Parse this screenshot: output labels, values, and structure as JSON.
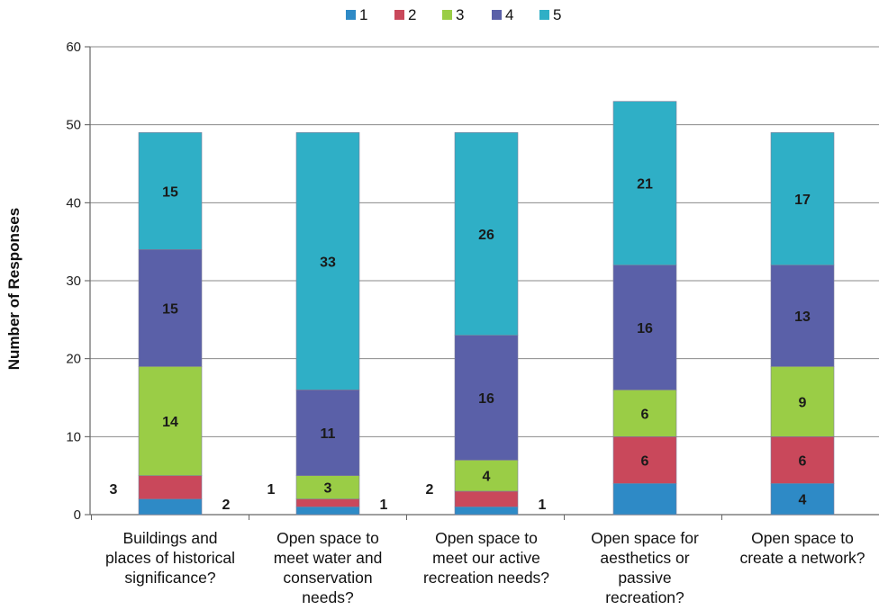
{
  "chart_data": {
    "type": "bar",
    "stacked": true,
    "ylabel": "Number of Responses",
    "ylim": [
      0,
      60
    ],
    "yticks": [
      0,
      10,
      20,
      30,
      40,
      50,
      60
    ],
    "grid": true,
    "legend_position": "top-center",
    "categories": [
      [
        "Buildings and",
        "places of historical",
        "significance?"
      ],
      [
        "Open space to",
        "meet water and",
        "conservation",
        "needs?"
      ],
      [
        "Open space to",
        "meet our active",
        "recreation needs?"
      ],
      [
        "Open space for",
        "aesthetics or",
        "passive",
        "recreation?"
      ],
      [
        "Open space to",
        "create a network?"
      ]
    ],
    "series": [
      {
        "name": "1",
        "color": "#2E8AC6",
        "values": [
          2,
          1,
          1,
          4,
          4
        ],
        "labels": [
          "",
          "",
          "",
          "",
          "4"
        ]
      },
      {
        "name": "2",
        "color": "#C9485B",
        "values": [
          3,
          1,
          2,
          6,
          6
        ],
        "labels": [
          "",
          "",
          "",
          "6",
          "6"
        ]
      },
      {
        "name": "3",
        "color": "#9ACD46",
        "values": [
          14,
          3,
          4,
          6,
          9
        ],
        "labels": [
          "14",
          "3",
          "4",
          "6",
          "9"
        ]
      },
      {
        "name": "4",
        "color": "#5A60A8",
        "values": [
          15,
          11,
          16,
          16,
          13
        ],
        "labels": [
          "15",
          "11",
          "16",
          "16",
          "13"
        ]
      },
      {
        "name": "5",
        "color": "#2FAFC6",
        "values": [
          15,
          33,
          26,
          21,
          17
        ],
        "labels": [
          "15",
          "33",
          "26",
          "21",
          "17"
        ]
      }
    ],
    "outside_labels": [
      {
        "category": 0,
        "left": "3",
        "right": "2"
      },
      {
        "category": 1,
        "left": "1",
        "right": "1"
      },
      {
        "category": 2,
        "left": "2",
        "right": "1"
      }
    ]
  }
}
